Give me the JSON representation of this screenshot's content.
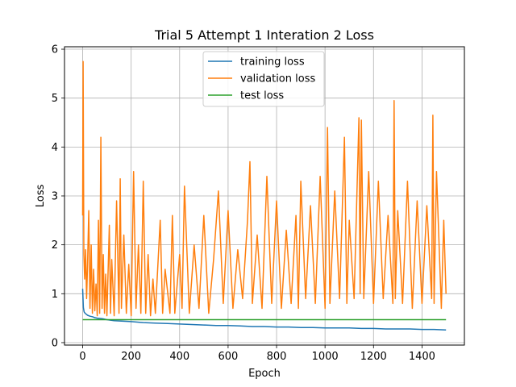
{
  "chart_data": {
    "type": "line",
    "title": "Trial 5 Attempt 1 Interation 2 Loss",
    "xlabel": "Epoch",
    "ylabel": "Loss",
    "xlim": [
      -75,
      1575
    ],
    "ylim": [
      -0.05,
      6.05
    ],
    "x_ticks": [
      0,
      200,
      400,
      600,
      800,
      1000,
      1200,
      1400
    ],
    "y_ticks": [
      0,
      1,
      2,
      3,
      4,
      5,
      6
    ],
    "grid": true,
    "legend": "top-center",
    "series": [
      {
        "name": "training loss",
        "color": "#1f77b4",
        "x": [
          0,
          3,
          6,
          10,
          15,
          20,
          30,
          40,
          50,
          60,
          80,
          100,
          130,
          160,
          200,
          250,
          300,
          350,
          400,
          450,
          500,
          550,
          600,
          650,
          700,
          750,
          800,
          850,
          900,
          950,
          1000,
          1050,
          1100,
          1150,
          1200,
          1250,
          1300,
          1350,
          1400,
          1450,
          1499
        ],
        "y": [
          1.1,
          0.72,
          0.63,
          0.6,
          0.58,
          0.56,
          0.54,
          0.53,
          0.51,
          0.5,
          0.49,
          0.47,
          0.45,
          0.44,
          0.43,
          0.41,
          0.4,
          0.39,
          0.38,
          0.37,
          0.36,
          0.35,
          0.35,
          0.34,
          0.33,
          0.33,
          0.32,
          0.32,
          0.31,
          0.31,
          0.3,
          0.3,
          0.3,
          0.29,
          0.29,
          0.28,
          0.28,
          0.28,
          0.27,
          0.27,
          0.26
        ]
      },
      {
        "name": "validation loss",
        "color": "#ff7f0e",
        "x": [
          0,
          2,
          5,
          8,
          12,
          16,
          20,
          25,
          30,
          35,
          40,
          45,
          50,
          55,
          60,
          65,
          70,
          75,
          80,
          85,
          90,
          95,
          100,
          110,
          115,
          120,
          130,
          140,
          150,
          155,
          160,
          170,
          180,
          190,
          200,
          210,
          220,
          230,
          240,
          250,
          260,
          270,
          280,
          290,
          300,
          320,
          330,
          340,
          360,
          370,
          380,
          400,
          410,
          420,
          440,
          460,
          480,
          500,
          520,
          540,
          560,
          580,
          600,
          620,
          640,
          660,
          680,
          690,
          700,
          720,
          740,
          760,
          780,
          800,
          820,
          840,
          860,
          880,
          890,
          900,
          920,
          940,
          960,
          980,
          1000,
          1010,
          1020,
          1040,
          1060,
          1080,
          1090,
          1100,
          1120,
          1140,
          1145,
          1150,
          1160,
          1180,
          1200,
          1220,
          1240,
          1260,
          1280,
          1285,
          1290,
          1300,
          1320,
          1340,
          1360,
          1380,
          1400,
          1420,
          1440,
          1445,
          1450,
          1460,
          1480,
          1490,
          1499
        ],
        "y": [
          2.6,
          5.75,
          1.8,
          1.3,
          1.9,
          0.9,
          1.6,
          2.7,
          0.7,
          2.0,
          0.6,
          1.5,
          0.65,
          1.2,
          0.55,
          2.5,
          0.6,
          4.2,
          0.7,
          1.8,
          0.6,
          1.4,
          0.55,
          2.4,
          0.6,
          1.7,
          0.55,
          2.9,
          0.6,
          3.35,
          0.7,
          2.2,
          0.6,
          1.6,
          0.55,
          3.5,
          0.7,
          2.0,
          0.6,
          3.3,
          0.6,
          1.8,
          0.55,
          1.3,
          0.6,
          2.5,
          0.6,
          1.5,
          0.6,
          2.6,
          0.6,
          1.8,
          0.7,
          3.2,
          0.6,
          2.0,
          0.7,
          2.6,
          0.6,
          1.7,
          3.1,
          0.8,
          2.7,
          0.7,
          1.9,
          0.9,
          2.5,
          3.7,
          0.8,
          2.2,
          0.7,
          3.4,
          0.8,
          2.9,
          0.7,
          2.3,
          0.8,
          2.6,
          0.7,
          3.3,
          0.9,
          2.8,
          0.8,
          3.4,
          0.7,
          4.4,
          0.8,
          3.1,
          0.9,
          4.2,
          0.8,
          2.5,
          0.9,
          4.6,
          1.0,
          4.55,
          0.9,
          3.5,
          0.8,
          3.3,
          0.9,
          2.6,
          0.8,
          4.95,
          0.9,
          2.7,
          0.8,
          3.3,
          0.7,
          2.9,
          0.8,
          2.8,
          0.9,
          4.65,
          0.8,
          3.5,
          0.7,
          2.5,
          1.0
        ]
      },
      {
        "name": "test loss",
        "color": "#2ca02c",
        "x": [
          0,
          1499
        ],
        "y": [
          0.47,
          0.47
        ]
      }
    ]
  }
}
